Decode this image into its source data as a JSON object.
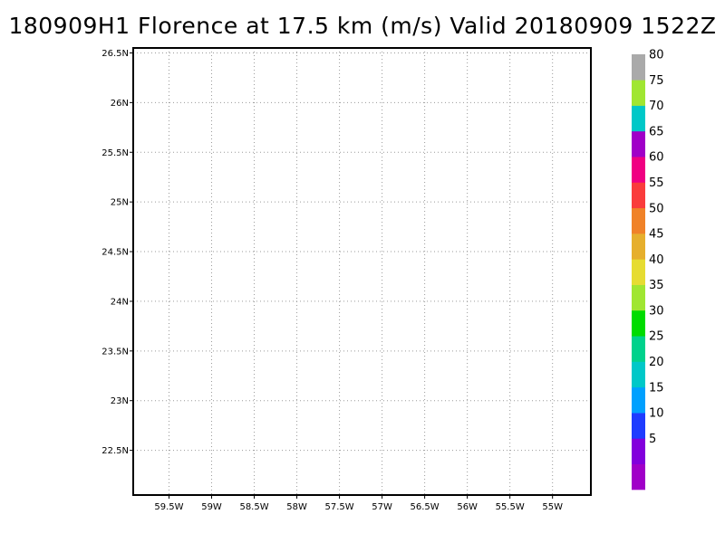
{
  "title": "180909H1 Florence at 17.5 km (m/s) Valid 20180909  1522Z",
  "map": {
    "lat_ticks": [
      {
        "value": 26.5,
        "label": "26.5N"
      },
      {
        "value": 26.0,
        "label": "26N"
      },
      {
        "value": 25.5,
        "label": "25.5N"
      },
      {
        "value": 25.0,
        "label": "25N"
      },
      {
        "value": 24.5,
        "label": "24.5N"
      },
      {
        "value": 24.0,
        "label": "24N"
      },
      {
        "value": 23.5,
        "label": "23.5N"
      },
      {
        "value": 23.0,
        "label": "23N"
      },
      {
        "value": 22.5,
        "label": "22.5N"
      }
    ],
    "lon_ticks": [
      {
        "value": -59.5,
        "label": "59.5W"
      },
      {
        "value": -59.0,
        "label": "59W"
      },
      {
        "value": -58.5,
        "label": "58.5W"
      },
      {
        "value": -58.0,
        "label": "58W"
      },
      {
        "value": -57.5,
        "label": "57.5W"
      },
      {
        "value": -57.0,
        "label": "57W"
      },
      {
        "value": -56.5,
        "label": "56.5W"
      },
      {
        "value": -56.0,
        "label": "56W"
      },
      {
        "value": -55.5,
        "label": "55.5W"
      },
      {
        "value": -55.0,
        "label": "55W"
      }
    ],
    "lat_range": [
      22.05,
      26.55
    ],
    "lon_range": [
      -59.92,
      -54.55
    ],
    "grid": true
  },
  "colorbar": {
    "segments": [
      {
        "color": "#a000c8",
        "label": ""
      },
      {
        "color": "#8200dc",
        "label": "5"
      },
      {
        "color": "#1e3cff",
        "label": "10"
      },
      {
        "color": "#00a0ff",
        "label": "15"
      },
      {
        "color": "#00c8c8",
        "label": "20"
      },
      {
        "color": "#00d28c",
        "label": "25"
      },
      {
        "color": "#00dc00",
        "label": "30"
      },
      {
        "color": "#a0e632",
        "label": "35"
      },
      {
        "color": "#e6dc32",
        "label": "40"
      },
      {
        "color": "#e6af2d",
        "label": "45"
      },
      {
        "color": "#f08228",
        "label": "50"
      },
      {
        "color": "#fa3c3c",
        "label": "55"
      },
      {
        "color": "#f00082",
        "label": "60"
      },
      {
        "color": "#a000c8",
        "label": "65"
      },
      {
        "color": "#00c8c8",
        "label": "70"
      },
      {
        "color": "#a0e632",
        "label": "75"
      },
      {
        "color": "#aaaaaa",
        "label": "80"
      }
    ]
  }
}
